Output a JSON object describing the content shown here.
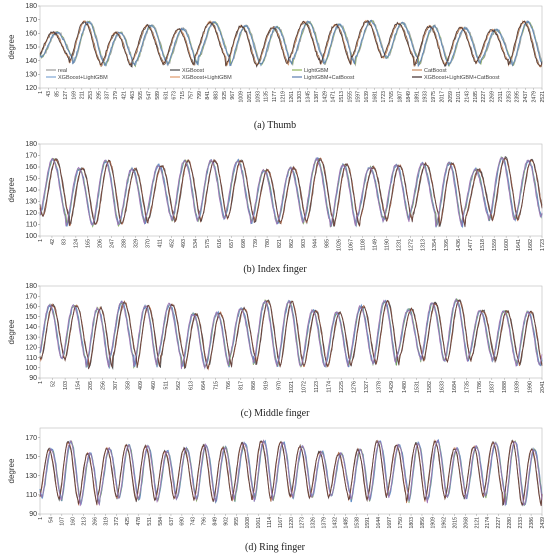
{
  "chart_data": [
    {
      "type": "line",
      "caption": "(a)    Thumb",
      "ylabel": "degree",
      "ylim": [
        120,
        180
      ],
      "yticks": [
        120,
        130,
        140,
        150,
        160,
        170,
        180
      ],
      "xticks": [
        "1",
        "43",
        "85",
        "127",
        "169",
        "211",
        "253",
        "295",
        "337",
        "379",
        "421",
        "463",
        "505",
        "547",
        "589",
        "631",
        "673",
        "715",
        "757",
        "799",
        "841",
        "883",
        "925",
        "967",
        "1009",
        "1051",
        "1093",
        "1135",
        "1177",
        "1219",
        "1261",
        "1303",
        "1345",
        "1387",
        "1429",
        "1471",
        "1513",
        "1555",
        "1597",
        "1639",
        "1681",
        "1723",
        "1765",
        "1807",
        "1849",
        "1891",
        "1933",
        "1975",
        "2017",
        "2059",
        "2101",
        "2143",
        "2185",
        "2227",
        "2269",
        "2311",
        "2353",
        "2395",
        "2437",
        "2479",
        "2521"
      ],
      "xmax": 2521,
      "periods": 16,
      "legend": [
        "real",
        "XGBoost",
        "LightGBM",
        "CatBoost",
        "XGBoost+LightGBM",
        "XGBoost+LightGBM",
        "LightGBM+CatBoost",
        "XGBoost+LightGBM+CatBoost"
      ],
      "legend_colors": [
        "#9b9b9b",
        "#4a4a4a",
        "#8fb35a",
        "#c98a5e",
        "#7fa7d4",
        "#e09a6a",
        "#5b7db0",
        "#3d2c2c"
      ]
    },
    {
      "type": "line",
      "caption": "(b)    Index finger",
      "ylabel": "degree",
      "ylim": [
        100,
        180
      ],
      "yticks": [
        100,
        110,
        120,
        130,
        140,
        150,
        160,
        170,
        180
      ],
      "xticks": [
        "1",
        "42",
        "83",
        "124",
        "165",
        "206",
        "247",
        "288",
        "329",
        "370",
        "411",
        "452",
        "493",
        "534",
        "575",
        "616",
        "657",
        "698",
        "739",
        "780",
        "821",
        "862",
        "903",
        "944",
        "985",
        "1026",
        "1067",
        "1108",
        "1149",
        "1190",
        "1231",
        "1272",
        "1313",
        "1354",
        "1395",
        "1436",
        "1477",
        "1518",
        "1559",
        "1600",
        "1641",
        "1682",
        "1723"
      ],
      "xmax": 1723,
      "periods": 19
    },
    {
      "type": "line",
      "caption": "(c)    Middle finger",
      "ylabel": "degree",
      "ylim": [
        90,
        180
      ],
      "yticks": [
        90,
        100,
        110,
        120,
        130,
        140,
        150,
        160,
        170,
        180
      ],
      "xticks": [
        "1",
        "52",
        "103",
        "154",
        "205",
        "256",
        "307",
        "358",
        "409",
        "460",
        "511",
        "562",
        "613",
        "664",
        "715",
        "766",
        "817",
        "868",
        "919",
        "970",
        "1021",
        "1072",
        "1123",
        "1174",
        "1225",
        "1276",
        "1327",
        "1378",
        "1429",
        "1480",
        "1531",
        "1582",
        "1633",
        "1684",
        "1735",
        "1786",
        "1837",
        "1888",
        "1939",
        "1990",
        "2041"
      ],
      "xmax": 2041,
      "periods": 21
    },
    {
      "type": "line",
      "caption": "(d)    Ring finger",
      "ylabel": "degree",
      "ylim": [
        90,
        180
      ],
      "yticks": [
        90,
        110,
        130,
        150,
        170
      ],
      "xticks": [
        "1",
        "54",
        "107",
        "160",
        "213",
        "266",
        "319",
        "372",
        "425",
        "478",
        "531",
        "584",
        "637",
        "690",
        "743",
        "796",
        "849",
        "902",
        "955",
        "1008",
        "1061",
        "1114",
        "1167",
        "1220",
        "1273",
        "1326",
        "1379",
        "1432",
        "1485",
        "1538",
        "1591",
        "1644",
        "1697",
        "1750",
        "1803",
        "1856",
        "1909",
        "1962",
        "2015",
        "2068",
        "2121",
        "2174",
        "2227",
        "2280",
        "2333",
        "2386",
        "2439"
      ],
      "xmax": 2439,
      "periods": 26
    }
  ]
}
